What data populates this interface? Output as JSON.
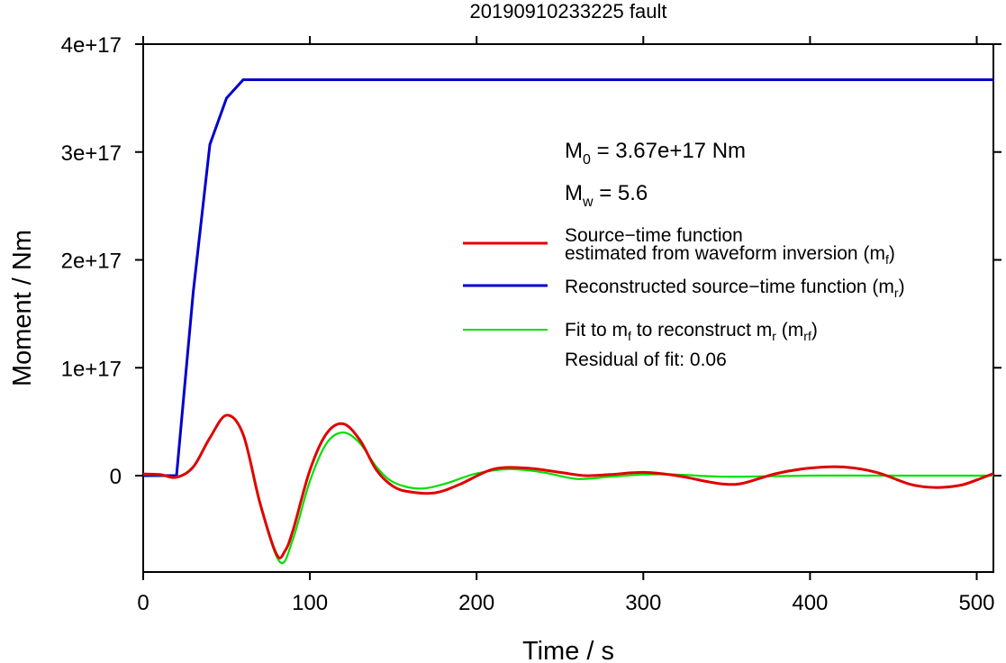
{
  "chart_data": {
    "type": "line",
    "title": "20190910233225 fault",
    "xlabel": "Time / s",
    "ylabel": "Moment / Nm",
    "xlim": [
      0,
      510
    ],
    "ylim": [
      -9e+16,
      4e+17
    ],
    "x_ticks": [
      0,
      100,
      200,
      300,
      400,
      500
    ],
    "x_tick_labels": [
      "0",
      "100",
      "200",
      "300",
      "400",
      "500"
    ],
    "y_ticks": [
      0,
      1e+17,
      2e+17,
      3e+17,
      4e+17
    ],
    "y_tick_labels": [
      "0",
      "1e+17",
      "2e+17",
      "3e+17",
      "4e+17"
    ],
    "annotations": {
      "m0": {
        "symbol": "M",
        "sub": "0",
        "text": " = 3.67e+17 Nm"
      },
      "mw": {
        "symbol": "M",
        "sub": "w",
        "text": " = 5.6"
      },
      "residual": "Residual of fit: 0.06"
    },
    "legend": {
      "position": "right",
      "entries": [
        {
          "line1": "Source−time function",
          "line2_pre": "estimated from waveform inversion (m",
          "line2_sub": "f",
          "line2_post": ")",
          "color": "#e00000"
        },
        {
          "pre": "Reconstructed source−time function (m",
          "sub": "r",
          "post": ")",
          "color": "#0000cc"
        },
        {
          "pre": "Fit to m",
          "sub1": "f",
          "mid": " to reconstruct m",
          "sub2": "r",
          "mid2": " (m",
          "sub3": "rf",
          "post": ")",
          "color": "#00e000"
        }
      ]
    },
    "series": [
      {
        "id": "mf",
        "color": "#e00000",
        "x": [
          0,
          10,
          20,
          30,
          40,
          50,
          60,
          70,
          80,
          85,
          90,
          100,
          110,
          120,
          130,
          140,
          150,
          160,
          175,
          190,
          210,
          230,
          250,
          265,
          280,
          300,
          320,
          340,
          350,
          360,
          380,
          400,
          420,
          440,
          460,
          475,
          490,
          500,
          510
        ],
        "y": [
          1500000000000000.0,
          1000000000000000.0,
          -1500000000000000.0,
          8000000000000000.0,
          3.5e+16,
          5.6e+16,
          3.8e+16,
          -2.5e+16,
          -7.3e+16,
          -7e+16,
          -5e+16,
          5000000000000000.0,
          3.9e+16,
          4.8e+16,
          3.3e+16,
          5000000000000000.0,
          -1e+16,
          -1.5e+16,
          -1.6e+16,
          -8000000000000000.0,
          6000000000000000.0,
          7000000000000000.0,
          3000000000000000.0,
          0.0,
          1000000000000000.0,
          3000000000000000.0,
          0.0,
          -6000000000000000.0,
          -8000000000000000.0,
          -7000000000000000.0,
          2000000000000000.0,
          7000000000000000.0,
          8000000000000000.0,
          3000000000000000.0,
          -8000000000000000.0,
          -1.1e+16,
          -9000000000000000.0,
          -4000000000000000.0,
          2000000000000000.0
        ]
      },
      {
        "id": "mr",
        "color": "#0000cc",
        "x": [
          0,
          10,
          20,
          30,
          40,
          50,
          60,
          510
        ],
        "y": [
          0.0,
          0.0,
          0.0,
          1.7e+17,
          3.07e+17,
          3.5e+17,
          3.67e+17,
          3.67e+17
        ]
      },
      {
        "id": "mrf",
        "color": "#00e000",
        "x": [
          0,
          10,
          20,
          30,
          40,
          50,
          60,
          70,
          82,
          90,
          100,
          110,
          120,
          130,
          140,
          150,
          165,
          180,
          200,
          220,
          240,
          260,
          280,
          300,
          320,
          350,
          400,
          450,
          510
        ],
        "y": [
          1000000000000000.0,
          500000000000000.0,
          -1000000000000000.0,
          8000000000000000.0,
          3.5e+16,
          5.6e+16,
          3.8e+16,
          -2.6e+16,
          -8e+16,
          -5.8e+16,
          -5000000000000000.0,
          3e+16,
          4e+16,
          3e+16,
          8000000000000000.0,
          -6000000000000000.0,
          -1.2e+16,
          -8000000000000000.0,
          2000000000000000.0,
          6000000000000000.0,
          3000000000000000.0,
          -3000000000000000.0,
          -1000000000000000.0,
          1000000000000000.0,
          1000000000000000.0,
          -1000000000000000.0,
          0.0,
          0.0,
          0.0
        ]
      }
    ],
    "grid": false
  }
}
